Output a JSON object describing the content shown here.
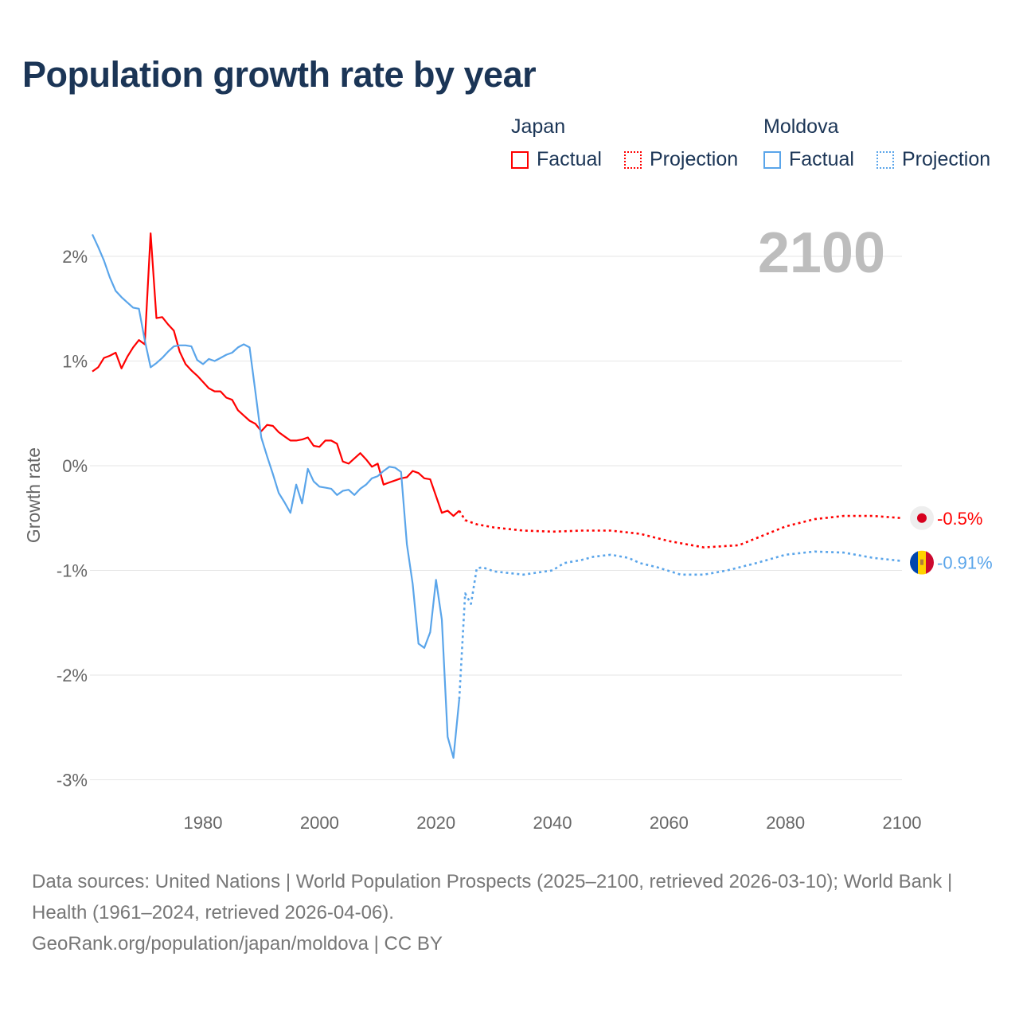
{
  "title": "Population growth rate by year",
  "legend": {
    "groups": [
      {
        "name": "Japan",
        "factual": "Factual",
        "projection": "Projection",
        "color": "#ff0000"
      },
      {
        "name": "Moldova",
        "factual": "Factual",
        "projection": "Projection",
        "color": "#5aa5ea"
      }
    ]
  },
  "year_label": "2100",
  "footer": {
    "sources": "Data sources: United Nations | World Population Prospects (2025–2100, retrieved 2026-03-10); World Bank | Health (1961–2024, retrieved 2026-04-06).",
    "credit": "GeoRank.org/population/japan/moldova | CC BY"
  },
  "chart_data": {
    "type": "line",
    "title": "Population growth rate by year",
    "xlabel": "",
    "ylabel": "Growth rate",
    "xlim": [
      1961,
      2100
    ],
    "ylim": [
      -3.2,
      2.3
    ],
    "xticks": [
      1980,
      2000,
      2020,
      2040,
      2060,
      2080,
      2100
    ],
    "xtick_labels": [
      "1980",
      "2000",
      "2020",
      "2040",
      "2060",
      "2080",
      "2100"
    ],
    "yticks": [
      2,
      1,
      0,
      -1,
      -2,
      -3
    ],
    "ytick_labels": [
      "2%",
      "1%",
      "0%",
      "-1%",
      "-2%",
      "-3%"
    ],
    "grid": true,
    "legend_position": "top-right",
    "series": [
      {
        "name": "Japan Factual",
        "color": "#ff0000",
        "style": "solid",
        "x": [
          1961,
          1962,
          1963,
          1964,
          1965,
          1966,
          1967,
          1968,
          1969,
          1970,
          1971,
          1972,
          1973,
          1974,
          1975,
          1976,
          1977,
          1978,
          1979,
          1980,
          1981,
          1982,
          1983,
          1984,
          1985,
          1986,
          1987,
          1988,
          1989,
          1990,
          1991,
          1992,
          1993,
          1994,
          1995,
          1996,
          1997,
          1998,
          1999,
          2000,
          2001,
          2002,
          2003,
          2004,
          2005,
          2006,
          2007,
          2008,
          2009,
          2010,
          2011,
          2012,
          2013,
          2014,
          2015,
          2016,
          2017,
          2018,
          2019,
          2020,
          2021,
          2022,
          2023,
          2024
        ],
        "y": [
          0.9,
          0.94,
          1.03,
          1.05,
          1.08,
          0.93,
          1.04,
          1.13,
          1.2,
          1.16,
          2.22,
          1.41,
          1.42,
          1.35,
          1.29,
          1.09,
          0.97,
          0.91,
          0.86,
          0.8,
          0.74,
          0.71,
          0.71,
          0.65,
          0.63,
          0.53,
          0.48,
          0.43,
          0.4,
          0.33,
          0.39,
          0.38,
          0.32,
          0.28,
          0.24,
          0.24,
          0.25,
          0.27,
          0.19,
          0.18,
          0.24,
          0.24,
          0.21,
          0.04,
          0.02,
          0.07,
          0.12,
          0.06,
          -0.01,
          0.02,
          -0.18,
          -0.16,
          -0.14,
          -0.12,
          -0.11,
          -0.05,
          -0.07,
          -0.12,
          -0.13,
          -0.29,
          -0.45,
          -0.43,
          -0.48,
          -0.43
        ]
      },
      {
        "name": "Japan Projection",
        "color": "#ff0000",
        "style": "dotted",
        "x": [
          2024,
          2025,
          2027,
          2030,
          2035,
          2040,
          2045,
          2050,
          2055,
          2060,
          2066,
          2072,
          2076,
          2080,
          2085,
          2090,
          2095,
          2100
        ],
        "y": [
          -0.43,
          -0.52,
          -0.56,
          -0.59,
          -0.62,
          -0.63,
          -0.62,
          -0.62,
          -0.65,
          -0.72,
          -0.78,
          -0.76,
          -0.67,
          -0.58,
          -0.51,
          -0.48,
          -0.48,
          -0.5
        ]
      },
      {
        "name": "Moldova Factual",
        "color": "#5aa5ea",
        "style": "solid",
        "x": [
          1961,
          1962,
          1963,
          1964,
          1965,
          1966,
          1967,
          1968,
          1969,
          1970,
          1971,
          1972,
          1973,
          1974,
          1975,
          1976,
          1977,
          1978,
          1979,
          1980,
          1981,
          1982,
          1983,
          1984,
          1985,
          1986,
          1987,
          1988,
          1989,
          1990,
          1991,
          1992,
          1993,
          1994,
          1995,
          1996,
          1997,
          1998,
          1999,
          2000,
          2001,
          2002,
          2003,
          2004,
          2005,
          2006,
          2007,
          2008,
          2009,
          2010,
          2011,
          2012,
          2013,
          2014,
          2015,
          2016,
          2017,
          2018,
          2019,
          2020,
          2021,
          2022,
          2023,
          2024
        ],
        "y": [
          2.21,
          2.09,
          1.96,
          1.8,
          1.67,
          1.61,
          1.56,
          1.51,
          1.5,
          1.2,
          0.94,
          0.98,
          1.03,
          1.09,
          1.14,
          1.15,
          1.15,
          1.14,
          1.01,
          0.97,
          1.02,
          1.0,
          1.03,
          1.06,
          1.08,
          1.13,
          1.16,
          1.13,
          0.7,
          0.27,
          0.09,
          -0.08,
          -0.26,
          -0.35,
          -0.45,
          -0.18,
          -0.36,
          -0.03,
          -0.15,
          -0.2,
          -0.21,
          -0.22,
          -0.28,
          -0.24,
          -0.23,
          -0.28,
          -0.22,
          -0.18,
          -0.12,
          -0.1,
          -0.05,
          -0.01,
          -0.02,
          -0.06,
          -0.75,
          -1.13,
          -1.7,
          -1.74,
          -1.59,
          -1.09,
          -1.47,
          -2.59,
          -2.79,
          -2.23
        ]
      },
      {
        "name": "Moldova Projection",
        "color": "#5aa5ea",
        "style": "dotted",
        "x": [
          2024,
          2025,
          2026,
          2027,
          2028,
          2029,
          2030,
          2035,
          2040,
          2042,
          2045,
          2047,
          2050,
          2053,
          2055,
          2058,
          2062,
          2066,
          2070,
          2075,
          2080,
          2085,
          2090,
          2095,
          2100
        ],
        "y": [
          -2.23,
          -1.22,
          -1.32,
          -0.98,
          -0.97,
          -0.99,
          -1.01,
          -1.04,
          -1.0,
          -0.93,
          -0.9,
          -0.87,
          -0.85,
          -0.88,
          -0.93,
          -0.97,
          -1.04,
          -1.04,
          -1.0,
          -0.93,
          -0.85,
          -0.82,
          -0.83,
          -0.88,
          -0.91
        ]
      }
    ],
    "end_labels": [
      {
        "country": "Japan",
        "value": "-0.5%",
        "color": "#ff0000",
        "y": -0.5
      },
      {
        "country": "Moldova",
        "value": "-0.91%",
        "color": "#5aa5ea",
        "y": -0.91
      }
    ]
  }
}
